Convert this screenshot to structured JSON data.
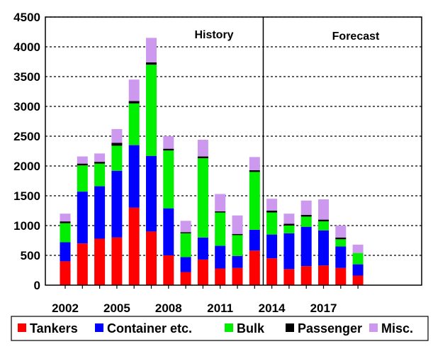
{
  "chart_data": {
    "type": "bar",
    "stacked": true,
    "ylim": [
      0,
      4500
    ],
    "yticks": [
      0,
      500,
      1000,
      1500,
      2000,
      2500,
      3000,
      3500,
      4000,
      4500
    ],
    "grid": "horizontal dashed",
    "legend_position": "bottom",
    "periods": [
      {
        "label": "History",
        "from": "2002",
        "to": "2013"
      },
      {
        "label": "Forecast",
        "from": "2014",
        "to": "2019"
      }
    ],
    "categories": [
      "2002",
      "2003",
      "2004",
      "2005",
      "2006",
      "2007",
      "2008",
      "2009",
      "2010",
      "2011",
      "2012",
      "2013",
      "2014",
      "2015",
      "2016",
      "2017",
      "2018",
      "2019"
    ],
    "xtick_labels": [
      "2002",
      "2005",
      "2008",
      "2011",
      "2014",
      "2017"
    ],
    "series": [
      {
        "name": "Tankers",
        "color": "#ff0000",
        "values": [
          400,
          700,
          780,
          800,
          1300,
          900,
          500,
          220,
          430,
          280,
          290,
          580,
          450,
          270,
          320,
          330,
          290,
          160
        ]
      },
      {
        "name": "Container etc.",
        "color": "#0000ff",
        "values": [
          320,
          870,
          880,
          1120,
          1050,
          1270,
          790,
          250,
          370,
          380,
          200,
          350,
          400,
          600,
          660,
          590,
          360,
          190
        ]
      },
      {
        "name": "Bulk",
        "color": "#00ee00",
        "values": [
          320,
          440,
          380,
          420,
          700,
          1530,
          970,
          400,
          1330,
          560,
          350,
          970,
          370,
          130,
          170,
          150,
          120,
          190
        ]
      },
      {
        "name": "Passenger",
        "color": "#000000",
        "values": [
          30,
          30,
          30,
          50,
          40,
          40,
          30,
          20,
          30,
          20,
          20,
          30,
          30,
          30,
          30,
          30,
          30,
          0
        ]
      },
      {
        "name": "Misc.",
        "color": "#cc99ee",
        "values": [
          130,
          120,
          140,
          230,
          360,
          410,
          210,
          190,
          280,
          290,
          310,
          220,
          200,
          170,
          240,
          340,
          200,
          140
        ]
      }
    ]
  }
}
